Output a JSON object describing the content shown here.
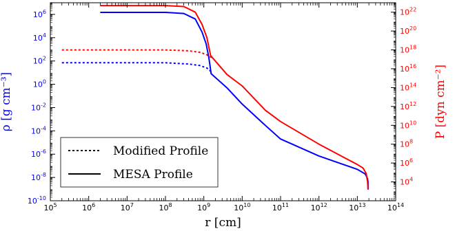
{
  "chart_data": {
    "type": "line",
    "xlabel": "r [cm]",
    "ylabel_left": "ρ [g cm⁻³]",
    "ylabel_right": "P [dyn cm⁻²]",
    "xscale": "log",
    "yscale_left": "log",
    "yscale_right": "log",
    "xlim": [
      100000.0,
      100000000000000.0
    ],
    "ylim_left": [
      1e-10,
      10000000.0
    ],
    "ylim_right": [
      100.0,
      1e+23
    ],
    "x_ticks": [
      {
        "value": 100000.0,
        "base": "10",
        "exp": "5"
      },
      {
        "value": 1000000.0,
        "base": "10",
        "exp": "6"
      },
      {
        "value": 10000000.0,
        "base": "10",
        "exp": "7"
      },
      {
        "value": 100000000.0,
        "base": "10",
        "exp": "8"
      },
      {
        "value": 1000000000.0,
        "base": "10",
        "exp": "9"
      },
      {
        "value": 10000000000.0,
        "base": "10",
        "exp": "10"
      },
      {
        "value": 100000000000.0,
        "base": "10",
        "exp": "11"
      },
      {
        "value": 1000000000000.0,
        "base": "10",
        "exp": "12"
      },
      {
        "value": 10000000000000.0,
        "base": "10",
        "exp": "13"
      },
      {
        "value": 100000000000000.0,
        "base": "10",
        "exp": "14"
      }
    ],
    "y_left_ticks": [
      {
        "value": 1e-10,
        "base": "10",
        "exp": "-10"
      },
      {
        "value": 1e-08,
        "base": "10",
        "exp": "-8"
      },
      {
        "value": 1e-06,
        "base": "10",
        "exp": "-6"
      },
      {
        "value": 0.0001,
        "base": "10",
        "exp": "-4"
      },
      {
        "value": 0.01,
        "base": "10",
        "exp": "-2"
      },
      {
        "value": 1.0,
        "base": "10",
        "exp": "0"
      },
      {
        "value": 100.0,
        "base": "10",
        "exp": "2"
      },
      {
        "value": 10000.0,
        "base": "10",
        "exp": "4"
      },
      {
        "value": 1000000.0,
        "base": "10",
        "exp": "6"
      }
    ],
    "y_right_ticks": [
      {
        "value": 10000.0,
        "base": "10",
        "exp": "4"
      },
      {
        "value": 1000000.0,
        "base": "10",
        "exp": "6"
      },
      {
        "value": 100000000.0,
        "base": "10",
        "exp": "8"
      },
      {
        "value": 10000000000.0,
        "base": "10",
        "exp": "10"
      },
      {
        "value": 1000000000000.0,
        "base": "10",
        "exp": "12"
      },
      {
        "value": 100000000000000.0,
        "base": "10",
        "exp": "14"
      },
      {
        "value": 1e+16,
        "base": "10",
        "exp": "16"
      },
      {
        "value": 1e+18,
        "base": "10",
        "exp": "18"
      },
      {
        "value": 1e+20,
        "base": "10",
        "exp": "20"
      },
      {
        "value": 1e+22,
        "base": "10",
        "exp": "22"
      }
    ],
    "colors": {
      "density": "#0000ff",
      "pressure": "#ff0000",
      "left_axis": "#0000ff",
      "right_axis": "#ff0000",
      "frame": "#000000"
    },
    "legend": {
      "location": "lower-left",
      "entries": [
        {
          "label": "Modified Profile",
          "style": "dotted"
        },
        {
          "label": "MESA Profile",
          "style": "solid"
        }
      ]
    },
    "series": [
      {
        "quantity": "density",
        "axis": "left",
        "style": "dotted",
        "points": [
          [
            200000.0,
            70
          ],
          [
            100000000.0,
            70
          ],
          [
            400000000.0,
            55
          ],
          [
            800000000.0,
            40
          ],
          [
            1200000000.0,
            25
          ],
          [
            1550000000.0,
            12
          ]
        ]
      },
      {
        "quantity": "pressure",
        "axis": "right",
        "style": "dotted",
        "points": [
          [
            200000.0,
            1e+18
          ],
          [
            100000000.0,
            1e+18
          ],
          [
            400000000.0,
            8e+17
          ],
          [
            800000000.0,
            5.5e+17
          ],
          [
            1200000000.0,
            3e+17
          ],
          [
            1600000000.0,
            1.5e+17
          ]
        ]
      },
      {
        "quantity": "density",
        "axis": "left",
        "style": "solid",
        "points": [
          [
            2000000.0,
            1500000.0
          ],
          [
            100000000.0,
            1500000.0
          ],
          [
            300000000.0,
            1200000.0
          ],
          [
            600000000.0,
            400000.0
          ],
          [
            900000000.0,
            30000.0
          ],
          [
            1150000000.0,
            3000.0
          ],
          [
            1350000000.0,
            200.0
          ],
          [
            1550000000.0,
            8
          ],
          [
            4000000000.0,
            0.5
          ],
          [
            10000000000.0,
            0.02
          ],
          [
            40000000000.0,
            0.0003
          ],
          [
            100000000000.0,
            2e-05
          ],
          [
            1000000000000.0,
            7e-07
          ],
          [
            10000000000000.0,
            5e-08
          ],
          [
            16000000000000.0,
            2e-08
          ],
          [
            18500000000000.0,
            8e-09
          ],
          [
            19000000000000.0,
            4e-09
          ],
          [
            19000000000000.0,
            1e-09
          ]
        ]
      },
      {
        "quantity": "pressure",
        "axis": "right",
        "style": "solid",
        "points": [
          [
            2000000.0,
            5e+22
          ],
          [
            100000000.0,
            5e+22
          ],
          [
            300000000.0,
            4e+22
          ],
          [
            600000000.0,
            1e+22
          ],
          [
            900000000.0,
            5e+20
          ],
          [
            1200000000.0,
            2e+19
          ],
          [
            1500000000.0,
            2.5e+17
          ],
          [
            4000000000.0,
            2500000000000000.0
          ],
          [
            10000000000.0,
            150000000000000.0
          ],
          [
            40000000000.0,
            400000000000.0
          ],
          [
            100000000000.0,
            25000000000.0
          ],
          [
            1000000000000.0,
            100000000.0
          ],
          [
            10000000000000.0,
            700000.0
          ],
          [
            14000000000000.0,
            300000.0
          ],
          [
            17000000000000.0,
            80000.0
          ],
          [
            18500000000000.0,
            10000.0
          ],
          [
            19000000000000.0,
            1500.0
          ]
        ]
      }
    ]
  }
}
